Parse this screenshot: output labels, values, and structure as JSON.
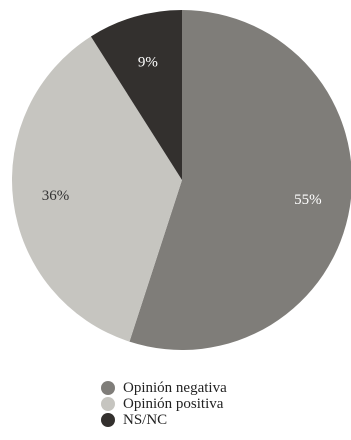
{
  "chart_data": {
    "type": "pie",
    "title": "",
    "start": "12 o'clock",
    "direction": "clockwise",
    "legend_position": "bottom",
    "slices": [
      {
        "label": "Opinión negativa",
        "value": 55,
        "value_label": "55%",
        "color": "#7f7d79",
        "label_color": "#ffffff"
      },
      {
        "label": "Opinión positiva",
        "value": 36,
        "value_label": "36%",
        "color": "#c6c5c0",
        "label_color": "#333333"
      },
      {
        "label": "NS/NC",
        "value": 9,
        "value_label": "9%",
        "color": "#33302e",
        "label_color": "#ffffff"
      }
    ]
  }
}
